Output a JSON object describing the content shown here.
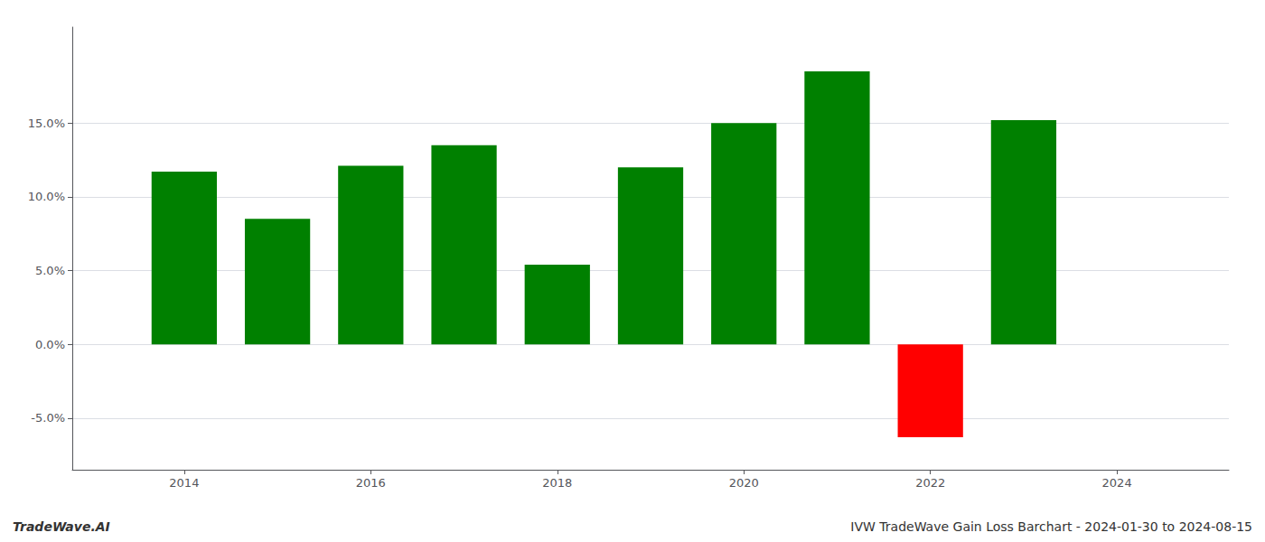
{
  "chart_data": {
    "type": "bar",
    "x": [
      2014,
      2015,
      2016,
      2017,
      2018,
      2019,
      2020,
      2021,
      2022,
      2023
    ],
    "values": [
      0.117,
      0.085,
      0.121,
      0.135,
      0.054,
      0.12,
      0.15,
      0.185,
      -0.063,
      0.152
    ],
    "colors": [
      "#008000",
      "#008000",
      "#008000",
      "#008000",
      "#008000",
      "#008000",
      "#008000",
      "#008000",
      "#ff0000",
      "#008000"
    ],
    "xlim": [
      2012.8,
      2025.2
    ],
    "xticks": [
      2014,
      2016,
      2018,
      2020,
      2022,
      2024
    ],
    "ylim": [
      -0.085,
      0.215
    ],
    "yticks": [
      {
        "value": -0.05,
        "label": "-5.0%"
      },
      {
        "value": 0.0,
        "label": "0.0%"
      },
      {
        "value": 0.05,
        "label": "5.0%"
      },
      {
        "value": 0.1,
        "label": "10.0%"
      },
      {
        "value": 0.15,
        "label": "15.0%"
      }
    ],
    "grid": true,
    "annotations": [
      "TradeWave.AI",
      "IVW TradeWave Gain Loss Barchart - 2024-01-30 to 2024-08-15"
    ]
  }
}
